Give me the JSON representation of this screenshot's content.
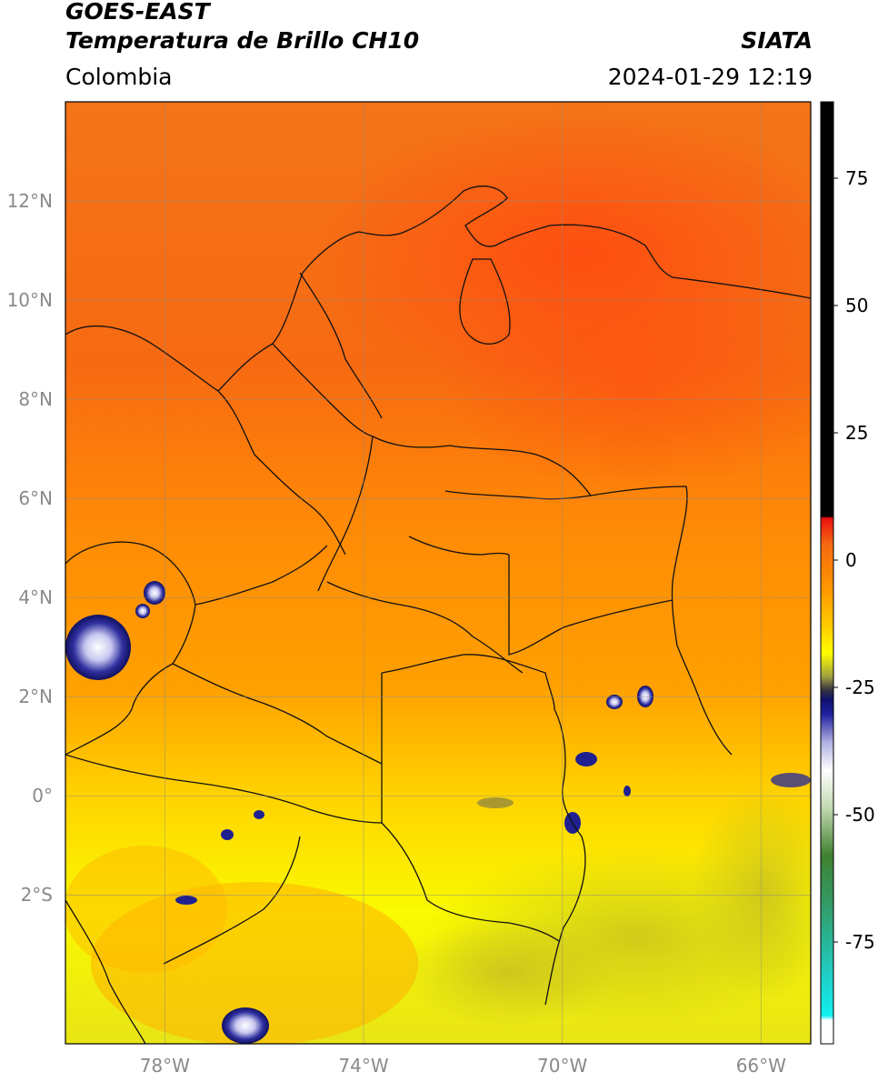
{
  "header": {
    "satellite": "GOES-EAST",
    "product": "Temperatura de Brillo CH10",
    "agency": "SIATA",
    "region": "Colombia",
    "timestamp": "2024-01-29 12:19"
  },
  "map": {
    "extent": {
      "lon_min": -80,
      "lon_max": -65,
      "lat_min": -5,
      "lat_max": 14
    },
    "lat_ticks": [
      {
        "value": 12,
        "label": "12°N"
      },
      {
        "value": 10,
        "label": "10°N"
      },
      {
        "value": 8,
        "label": "8°N"
      },
      {
        "value": 6,
        "label": "6°N"
      },
      {
        "value": 4,
        "label": "4°N"
      },
      {
        "value": 2,
        "label": "2°N"
      },
      {
        "value": 0,
        "label": "0°"
      },
      {
        "value": -2,
        "label": "2°S"
      }
    ],
    "lon_ticks": [
      {
        "value": -78,
        "label": "78°W"
      },
      {
        "value": -74,
        "label": "74°W"
      },
      {
        "value": -70,
        "label": "70°W"
      },
      {
        "value": -66,
        "label": "66°W"
      }
    ],
    "colors": {
      "warm": "#f06010",
      "mid": "#ff9400",
      "cool": "#ffff00",
      "cold_cloud": "#1a1a8a",
      "grid": "#8a8a8a"
    }
  },
  "colorbar": {
    "vmin": -95,
    "vmax": 90,
    "ticks": [
      {
        "value": 75,
        "label": "75"
      },
      {
        "value": 50,
        "label": "50"
      },
      {
        "value": 25,
        "label": "25"
      },
      {
        "value": 0,
        "label": "0"
      },
      {
        "value": -25,
        "label": "-25"
      },
      {
        "value": -50,
        "label": "-50"
      },
      {
        "value": -75,
        "label": "-75"
      }
    ]
  }
}
